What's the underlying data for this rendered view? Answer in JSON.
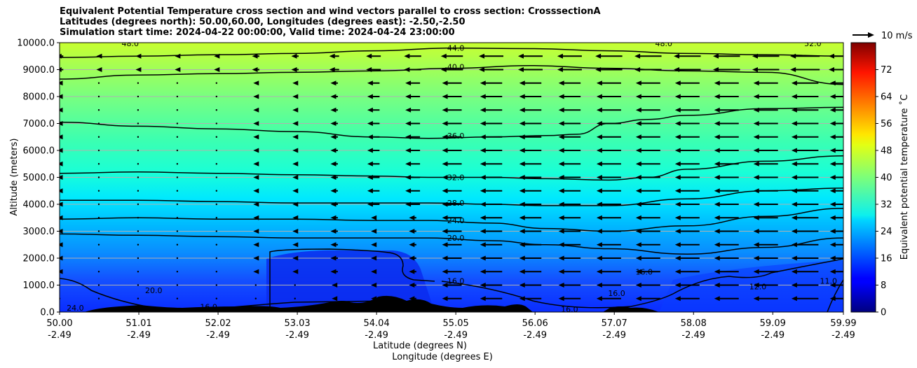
{
  "chart_data": {
    "type": "contour_heatmap_with_vectors",
    "title_lines": [
      "Equivalent Potential Temperature cross section and wind vectors parallel to cross section: CrosssectionA",
      "Latitudes (degrees north): 50.00,60.00, Longitudes (degrees east): -2.50,-2.50",
      "Simulation start time: 2024-04-22 00:00:00, Valid time: 2024-04-24 23:00:00"
    ],
    "ylabel": "Altitude (meters)",
    "xlabel_lines": [
      "Latitude (degrees N)",
      "Longitude (degrees E)"
    ],
    "ylim": [
      0,
      10000
    ],
    "y_ticks": [
      "0.0",
      "1000.0",
      "2000.0",
      "3000.0",
      "4000.0",
      "5000.0",
      "6000.0",
      "7000.0",
      "8000.0",
      "9000.0",
      "10000.0"
    ],
    "x_ticks_lat": [
      "50.00",
      "51.01",
      "52.02",
      "53.03",
      "54.04",
      "55.05",
      "56.06",
      "57.07",
      "58.08",
      "59.09",
      "59.99"
    ],
    "x_ticks_lon": [
      "-2.49",
      "-2.49",
      "-2.49",
      "-2.49",
      "-2.49",
      "-2.49",
      "-2.49",
      "-2.49",
      "-2.49",
      "-2.49",
      "-2.49"
    ],
    "grid": "horizontal",
    "colorbar": {
      "label": "Equivalent potential temperature ˚C",
      "range": [
        0,
        80
      ],
      "ticks": [
        "0",
        "8",
        "16",
        "24",
        "32",
        "40",
        "48",
        "56",
        "64",
        "72"
      ]
    },
    "quiver_key": "10 m/s",
    "contour_labels": [
      {
        "text": "44.0",
        "lat": 55.05,
        "alt": 9800
      },
      {
        "text": "40.0",
        "lat": 55.05,
        "alt": 9100
      },
      {
        "text": "36.0",
        "lat": 55.05,
        "alt": 6550
      },
      {
        "text": "32.0",
        "lat": 55.05,
        "alt": 5000
      },
      {
        "text": "28.0",
        "lat": 55.05,
        "alt": 4050
      },
      {
        "text": "24.0",
        "lat": 55.05,
        "alt": 3400
      },
      {
        "text": "20.0",
        "lat": 55.05,
        "alt": 2750
      },
      {
        "text": "16.0",
        "lat": 55.05,
        "alt": 1150
      },
      {
        "text": "48.0",
        "lat": 57.7,
        "alt": 9980
      },
      {
        "text": "52.0",
        "lat": 59.6,
        "alt": 9980
      },
      {
        "text": "48.0",
        "lat": 50.9,
        "alt": 9980
      },
      {
        "text": "20.0",
        "lat": 51.2,
        "alt": 800
      },
      {
        "text": "24.0",
        "lat": 50.2,
        "alt": 150
      },
      {
        "text": "20.0",
        "lat": 50.7,
        "alt": 50
      },
      {
        "text": "16.0",
        "lat": 51.9,
        "alt": 200
      },
      {
        "text": "16.0",
        "lat": 56.5,
        "alt": 100
      },
      {
        "text": "16.0",
        "lat": 57.45,
        "alt": 1500
      },
      {
        "text": "16.0",
        "lat": 57.1,
        "alt": 700
      },
      {
        "text": "12.0",
        "lat": 58.9,
        "alt": 950
      },
      {
        "text": "11.0",
        "lat": 59.8,
        "alt": 1150
      }
    ],
    "contours": [
      {
        "level": 44,
        "lat": [
          50,
          51,
          52,
          53,
          54,
          55,
          56,
          57,
          58,
          59,
          60
        ],
        "alt": [
          9450,
          9500,
          9550,
          9600,
          9700,
          9800,
          9780,
          9700,
          9600,
          9550,
          9500
        ]
      },
      {
        "level": 40,
        "lat": [
          50,
          51,
          52,
          53,
          54,
          55,
          56,
          57,
          58,
          59,
          60
        ],
        "alt": [
          8650,
          8800,
          8850,
          8900,
          8950,
          9050,
          9150,
          9050,
          8950,
          8900,
          8450
        ]
      },
      {
        "level": 36,
        "lat": [
          50,
          51,
          52,
          53,
          54,
          54.7,
          55.5,
          56.2,
          56.6,
          57,
          57.5,
          58,
          59,
          60
        ],
        "alt": [
          7050,
          6900,
          6800,
          6700,
          6500,
          6450,
          6500,
          6550,
          6600,
          7000,
          7150,
          7300,
          7550,
          7600
        ]
      },
      {
        "level": 32,
        "lat": [
          50,
          51,
          52,
          53,
          54,
          54.7,
          55.5,
          56.2,
          57,
          57.5,
          58,
          59,
          60
        ],
        "alt": [
          5150,
          5200,
          5150,
          5100,
          5050,
          5000,
          5000,
          4950,
          4900,
          5000,
          5300,
          5600,
          5800
        ]
      },
      {
        "level": 28,
        "lat": [
          50,
          51,
          52,
          53,
          54,
          54.7,
          55.5,
          56.2,
          57,
          58,
          59,
          60
        ],
        "alt": [
          4150,
          4150,
          4100,
          4050,
          4050,
          4050,
          4000,
          3950,
          3950,
          4200,
          4500,
          4600
        ]
      },
      {
        "level": 24,
        "lat": [
          50,
          51,
          52,
          53,
          54,
          54.7,
          55.5,
          56.2,
          57,
          58,
          59,
          60
        ],
        "alt": [
          3450,
          3500,
          3450,
          3450,
          3400,
          3400,
          3300,
          3100,
          3000,
          3200,
          3550,
          3850
        ]
      },
      {
        "level": 20,
        "lat": [
          50,
          51,
          52,
          53,
          54,
          54.7,
          55.5,
          56.2,
          57,
          58,
          59,
          60
        ],
        "alt": [
          2900,
          2850,
          2800,
          2750,
          2750,
          2750,
          2650,
          2500,
          2350,
          2150,
          2400,
          2750
        ]
      }
    ],
    "wind_grid": {
      "lats": [
        50.0,
        50.5,
        51.0,
        51.5,
        52.0,
        52.5,
        53.0,
        53.5,
        54.0,
        54.5,
        55.0,
        55.5,
        56.0,
        56.5,
        57.0,
        57.5,
        58.0,
        58.5,
        59.0,
        59.5,
        59.99
      ],
      "alts": [
        500,
        1000,
        1500,
        2000,
        2500,
        3000,
        3500,
        4000,
        4500,
        5000,
        5500,
        6000,
        6500,
        7000,
        7500,
        8000,
        8500,
        9000,
        9500
      ],
      "speed_ms_by_lat": [
        2,
        1,
        1,
        1,
        1,
        2,
        2,
        3,
        5,
        6,
        8,
        9,
        9,
        9,
        10,
        10,
        10,
        10,
        10,
        11,
        11
      ]
    }
  }
}
